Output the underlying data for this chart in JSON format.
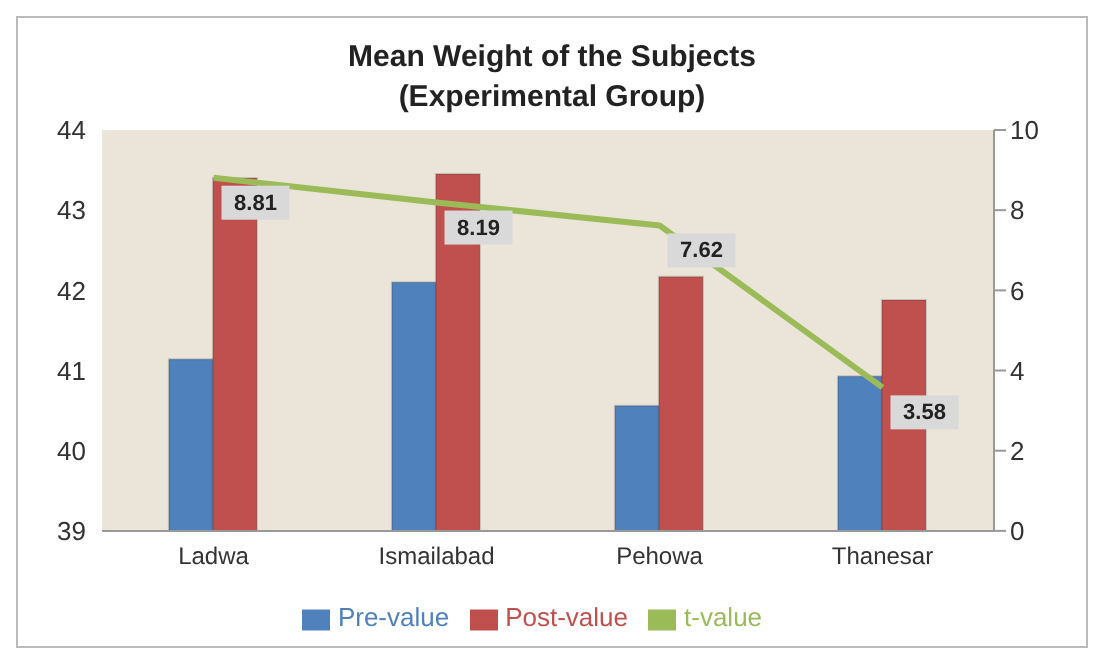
{
  "chart_data": {
    "type": "bar",
    "title": "Mean Weight of the Subjects\n(Experimental Group)",
    "categories": [
      "Ladwa",
      "Ismailabad",
      "Pehowa",
      "Thanesar"
    ],
    "series": [
      {
        "name": "Pre-value",
        "color": "#4f81bd",
        "values": [
          41.14,
          42.1,
          40.56,
          40.93
        ]
      },
      {
        "name": "Post-value",
        "color": "#c0504d",
        "values": [
          43.4,
          43.45,
          42.17,
          41.88
        ]
      },
      {
        "name": "t-value",
        "type": "line",
        "axis": "y2",
        "color": "#9bbb59",
        "values": [
          8.81,
          8.19,
          7.62,
          3.58
        ],
        "value_labels": [
          "8.81",
          "8.19",
          "7.62",
          "3.58"
        ]
      }
    ],
    "ylim": [
      39,
      44
    ],
    "yticks": [
      39,
      40,
      41,
      42,
      43,
      44
    ],
    "y2lim": [
      0,
      10
    ],
    "y2ticks": [
      0,
      2,
      4,
      6,
      8,
      10
    ],
    "grid": false,
    "legend": "bottom",
    "marker": "none"
  }
}
